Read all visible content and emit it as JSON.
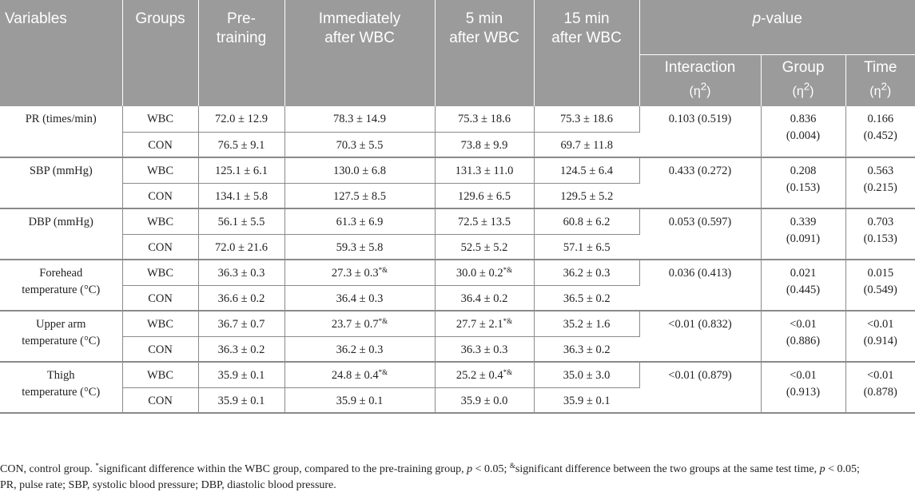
{
  "headers": {
    "variables": "Variables",
    "groups": "Groups",
    "pre_l1": "Pre-",
    "pre_l2": "training",
    "imm_l1": "Immediately",
    "imm_l2": "after WBC",
    "min5_l1": "5 min",
    "min5_l2": "after WBC",
    "min15_l1": "15 min",
    "min15_l2": "after WBC",
    "p_italic": "p",
    "p_rest": "-value",
    "interaction": "Interaction",
    "group": "Group",
    "time": "Time",
    "eta": "(η",
    "eta_sup": "2",
    "eta_close": ")"
  },
  "rows": [
    {
      "variable_l1": "PR (times/min)",
      "variable_l2": "",
      "wbc": [
        "WBC",
        "72.0 ± 12.9",
        "78.3 ± 14.9",
        "",
        "75.3 ± 18.6",
        "",
        "75.3 ± 18.6"
      ],
      "con": [
        "CON",
        "76.5 ± 9.1",
        "70.3 ± 5.5",
        "",
        "73.8 ± 9.9",
        "",
        "69.7 ± 11.8"
      ],
      "interaction": "0.103 (0.519)",
      "group_l1": "0.836",
      "group_l2": "(0.004)",
      "time_l1": "0.166",
      "time_l2": "(0.452)"
    },
    {
      "variable_l1": "SBP (mmHg)",
      "variable_l2": "",
      "wbc": [
        "WBC",
        "125.1 ± 6.1",
        "130.0 ± 6.8",
        "",
        "131.3 ± 11.0",
        "",
        "124.5 ± 6.4"
      ],
      "con": [
        "CON",
        "134.1 ± 5.8",
        "127.5 ± 8.5",
        "",
        "129.6 ± 6.5",
        "",
        "129.5 ± 5.2"
      ],
      "interaction": "0.433 (0.272)",
      "group_l1": "0.208",
      "group_l2": "(0.153)",
      "time_l1": "0.563",
      "time_l2": "(0.215)"
    },
    {
      "variable_l1": "DBP (mmHg)",
      "variable_l2": "",
      "wbc": [
        "WBC",
        "56.1 ± 5.5",
        "61.3 ± 6.9",
        "",
        "72.5 ± 13.5",
        "",
        "60.8 ± 6.2"
      ],
      "con": [
        "CON",
        "72.0 ± 21.6",
        "59.3 ± 5.8",
        "",
        "52.5 ± 5.2",
        "",
        "57.1 ± 6.5"
      ],
      "interaction": "0.053 (0.597)",
      "group_l1": "0.339",
      "group_l2": "(0.091)",
      "time_l1": "0.703",
      "time_l2": "(0.153)"
    },
    {
      "variable_l1": "Forehead",
      "variable_l2": "temperature (°C)",
      "wbc": [
        "WBC",
        "36.3 ± 0.3",
        "27.3 ± 0.3",
        "*&",
        "30.0 ± 0.2",
        "*&",
        "36.2 ± 0.3"
      ],
      "con": [
        "CON",
        "36.6 ± 0.2",
        "36.4 ± 0.3",
        "",
        "36.4 ± 0.2",
        "",
        "36.5 ± 0.2"
      ],
      "interaction": "0.036 (0.413)",
      "group_l1": "0.021",
      "group_l2": "(0.445)",
      "time_l1": "0.015",
      "time_l2": "(0.549)"
    },
    {
      "variable_l1": "Upper arm",
      "variable_l2": "temperature (°C)",
      "wbc": [
        "WBC",
        "36.7 ± 0.7",
        "23.7 ± 0.7",
        "*&",
        "27.7 ± 2.1",
        "*&",
        "35.2 ± 1.6"
      ],
      "con": [
        "CON",
        "36.3 ± 0.2",
        "36.2 ± 0.3",
        "",
        "36.3 ± 0.3",
        "",
        "36.3 ± 0.2"
      ],
      "interaction": "<0.01 (0.832)",
      "group_l1": "<0.01",
      "group_l2": "(0.886)",
      "time_l1": "<0.01",
      "time_l2": "(0.914)"
    },
    {
      "variable_l1": "Thigh",
      "variable_l2": "temperature (°C)",
      "wbc": [
        "WBC",
        "35.9 ± 0.1",
        "24.8 ± 0.4",
        "*&",
        "25.2 ± 0.4",
        "*&",
        "35.0 ± 3.0"
      ],
      "con": [
        "CON",
        "35.9 ± 0.1",
        "35.9 ± 0.1",
        "",
        "35.9 ± 0.0",
        "",
        "35.9 ± 0.1"
      ],
      "interaction": "<0.01 (0.879)",
      "group_l1": "<0.01",
      "group_l2": "(0.913)",
      "time_l1": "<0.01",
      "time_l2": "(0.878)"
    }
  ],
  "footnote": {
    "p1": "CON, control group. ",
    "star": "*",
    "p2": "significant difference within the WBC group, compared to the pre-training group, ",
    "p_a": "p",
    "p3": " < 0.05; ",
    "amp": "&",
    "p4": "significant difference between the two groups at the same test time, ",
    "p_b": "p",
    "p5": " < 0.05;",
    "line2": "PR, pulse rate; SBP, systolic blood pressure; DBP, diastolic blood pressure."
  }
}
